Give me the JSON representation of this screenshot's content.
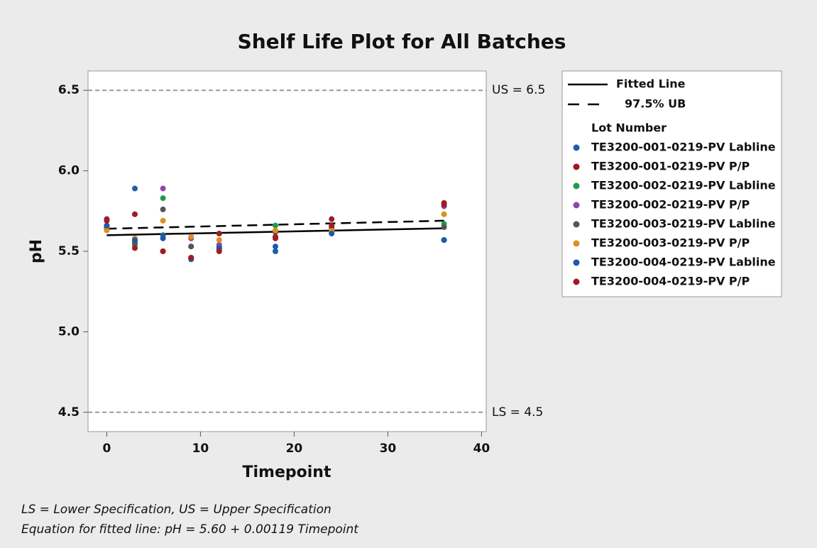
{
  "chart_data": {
    "type": "scatter",
    "title": "Shelf Life Plot for All Batches",
    "x_label": "Timepoint",
    "y_label": "pH",
    "xlim": [
      -2,
      40.5
    ],
    "ylim": [
      4.38,
      6.62
    ],
    "xticks": [
      0,
      10,
      20,
      30,
      40
    ],
    "yticks": [
      4.5,
      {
        "value": 5,
        "label": "5.0"
      },
      5.5,
      {
        "value": 6,
        "label": "6.0"
      },
      6.5
    ],
    "reference_lines": [
      {
        "value": 6.5,
        "label": "US = 6.5"
      },
      {
        "value": 4.5,
        "label": "LS = 4.5"
      }
    ],
    "lines": [
      {
        "name": "Fitted Line",
        "style": "solid",
        "x": [
          0,
          36
        ],
        "values": [
          5.6,
          5.643
        ]
      },
      {
        "name": "97.5% UB",
        "style": "dashed",
        "x": [
          0,
          36
        ],
        "values": [
          5.64,
          5.69
        ]
      }
    ],
    "legend_title": "Lot Number",
    "series": [
      {
        "name": "TE3200-001-0219-PV Labline",
        "color": "#1f5ea8",
        "x": [
          0,
          3,
          6,
          9,
          12,
          18,
          24,
          36
        ],
        "values": [
          5.65,
          5.89,
          5.6,
          5.45,
          5.52,
          5.5,
          5.62,
          5.57
        ]
      },
      {
        "name": "TE3200-001-0219-PV P/P",
        "color": "#9b1c22",
        "x": [
          0,
          3,
          6,
          9,
          12,
          18,
          24,
          36
        ],
        "values": [
          5.7,
          5.73,
          5.5,
          5.46,
          5.61,
          5.59,
          5.7,
          5.8
        ]
      },
      {
        "name": "TE3200-002-0219-PV Labline",
        "color": "#1f9a4a",
        "x": [
          0,
          3,
          6,
          9,
          12,
          18,
          24,
          36
        ],
        "values": [
          5.64,
          5.54,
          5.83,
          5.53,
          5.53,
          5.66,
          5.65,
          5.67
        ]
      },
      {
        "name": "TE3200-002-0219-PV P/P",
        "color": "#8e44ad",
        "x": [
          0,
          3,
          6,
          9,
          12,
          18,
          24,
          36
        ],
        "values": [
          5.66,
          5.56,
          5.89,
          5.58,
          5.54,
          5.62,
          5.64,
          5.78
        ]
      },
      {
        "name": "TE3200-003-0219-PV Labline",
        "color": "#555555",
        "x": [
          0,
          3,
          6,
          9,
          12,
          18,
          24,
          36
        ],
        "values": [
          5.64,
          5.55,
          5.76,
          5.53,
          5.51,
          5.62,
          5.65,
          5.65
        ]
      },
      {
        "name": "TE3200-003-0219-PV P/P",
        "color": "#e08e1e",
        "x": [
          0,
          3,
          6,
          9,
          12,
          18,
          24,
          36
        ],
        "values": [
          5.63,
          5.58,
          5.69,
          5.59,
          5.57,
          5.63,
          5.63,
          5.73
        ]
      },
      {
        "name": "TE3200-004-0219-PV Labline",
        "color": "#1a5aa8",
        "x": [
          0,
          3,
          6,
          9,
          12,
          18,
          24,
          36
        ],
        "values": [
          5.66,
          5.57,
          5.58,
          5.46,
          5.52,
          5.53,
          5.61,
          5.57
        ]
      },
      {
        "name": "TE3200-004-0219-PV P/P",
        "color": "#a01b24",
        "x": [
          0,
          3,
          6,
          9,
          12,
          18,
          24,
          36
        ],
        "values": [
          5.69,
          5.52,
          5.5,
          5.46,
          5.5,
          5.58,
          5.66,
          5.79
        ]
      }
    ],
    "notes": [
      "LS = Lower Specification, US = Upper Specification",
      "Equation for fitted line: pH = 5.60 + 0.00119 Timepoint"
    ]
  }
}
